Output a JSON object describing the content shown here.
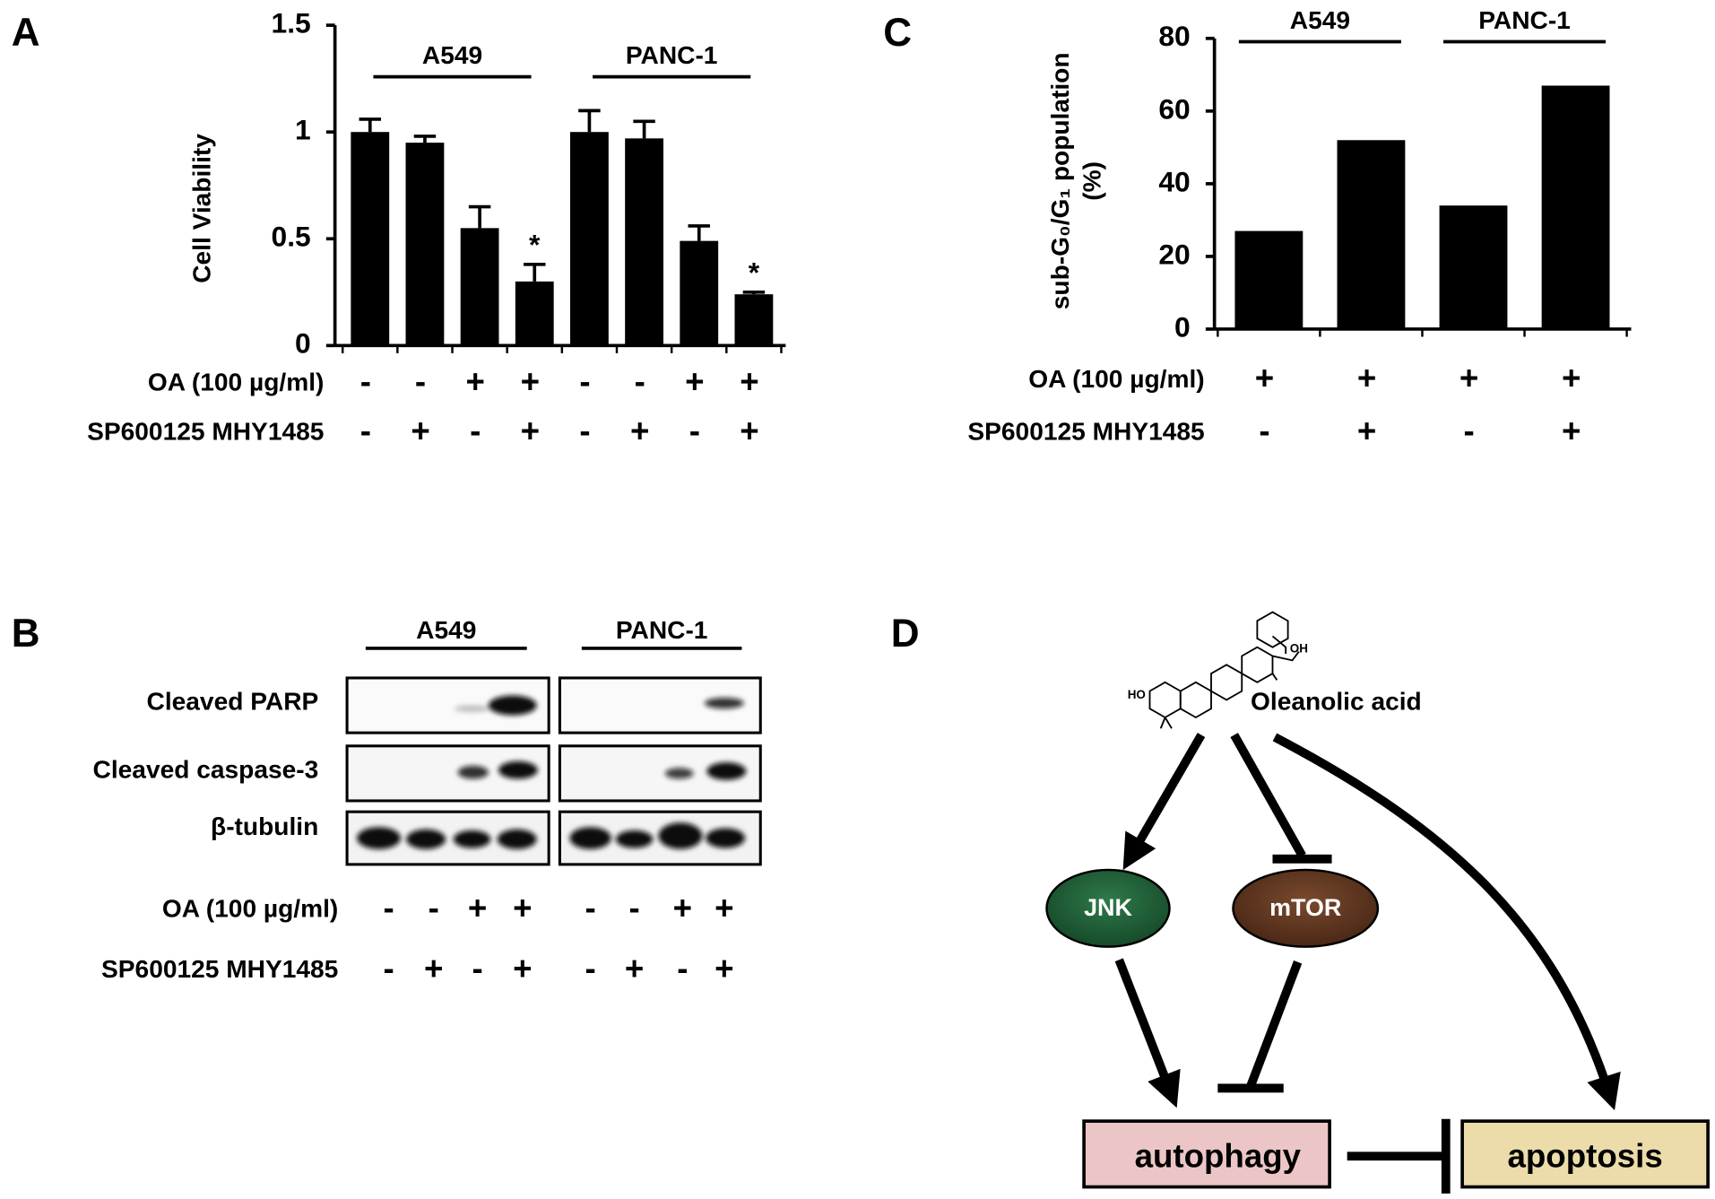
{
  "chart_data": [
    {
      "type": "bar",
      "panel": "A",
      "ylabel": "Cell Viability",
      "categories": [
        null,
        null,
        null,
        null,
        null,
        null,
        null,
        null
      ],
      "values": [
        1,
        0.95,
        0.55,
        0.3,
        1,
        0.97,
        0.49,
        0.24
      ],
      "errors": [
        0.06,
        0.03,
        0.1,
        0.08,
        0.1,
        0.08,
        0.07,
        0.01
      ],
      "color": "#000000",
      "ylim": [
        0,
        1.5
      ],
      "yticks": [
        0,
        0.5,
        1,
        1.5
      ],
      "groups": [
        "A549",
        "PANC-1"
      ],
      "treatments": [
        {
          "label": "OA (100 µg/ml)",
          "marks": [
            "-",
            "-",
            "+",
            "+",
            "-",
            "-",
            "+",
            "+"
          ]
        },
        {
          "label": "SP600125  MHY1485",
          "marks": [
            "-",
            "+",
            "-",
            "+",
            "-",
            "+",
            "-",
            "+"
          ]
        }
      ],
      "significance": [
        {
          "index": 3,
          "label": "*"
        },
        {
          "index": 7,
          "label": "*"
        }
      ]
    },
    {
      "type": "bar",
      "panel": "C",
      "ylabel": [
        "sub-G₀/G₁ population",
        "(%)"
      ],
      "categories": [
        null,
        null,
        null,
        null
      ],
      "values": [
        27,
        52,
        34,
        67
      ],
      "color": "#000000",
      "ylim": [
        0,
        80
      ],
      "yticks": [
        0,
        20,
        40,
        60,
        80
      ],
      "groups": [
        "A549",
        "PANC-1"
      ],
      "treatments": [
        {
          "label": "OA (100 µg/ml)",
          "marks": [
            "+",
            "+",
            "+",
            "+"
          ]
        },
        {
          "label": "SP600125  MHY1485",
          "marks": [
            "-",
            "+",
            "-",
            "+"
          ]
        }
      ]
    }
  ],
  "blot": {
    "panel": "B",
    "groups": [
      "A549",
      "PANC-1"
    ],
    "rows": [
      "Cleaved PARP",
      "Cleaved caspase-3",
      "β-tubulin"
    ],
    "treatments": [
      {
        "label": "OA (100 µg/ml)",
        "marks": [
          "-",
          "-",
          "+",
          "+",
          "-",
          "-",
          "+",
          "+"
        ]
      },
      {
        "label": "SP600125  MHY1485",
        "marks": [
          "-",
          "+",
          "-",
          "+",
          "-",
          "+",
          "-",
          "+"
        ]
      }
    ]
  },
  "diagram": {
    "panel": "D",
    "structure_labels": [
      "HO",
      "OH"
    ],
    "nodes": [
      "Oleanolic acid",
      "JNK",
      "mTOR",
      "autophagy",
      "apoptosis"
    ]
  }
}
